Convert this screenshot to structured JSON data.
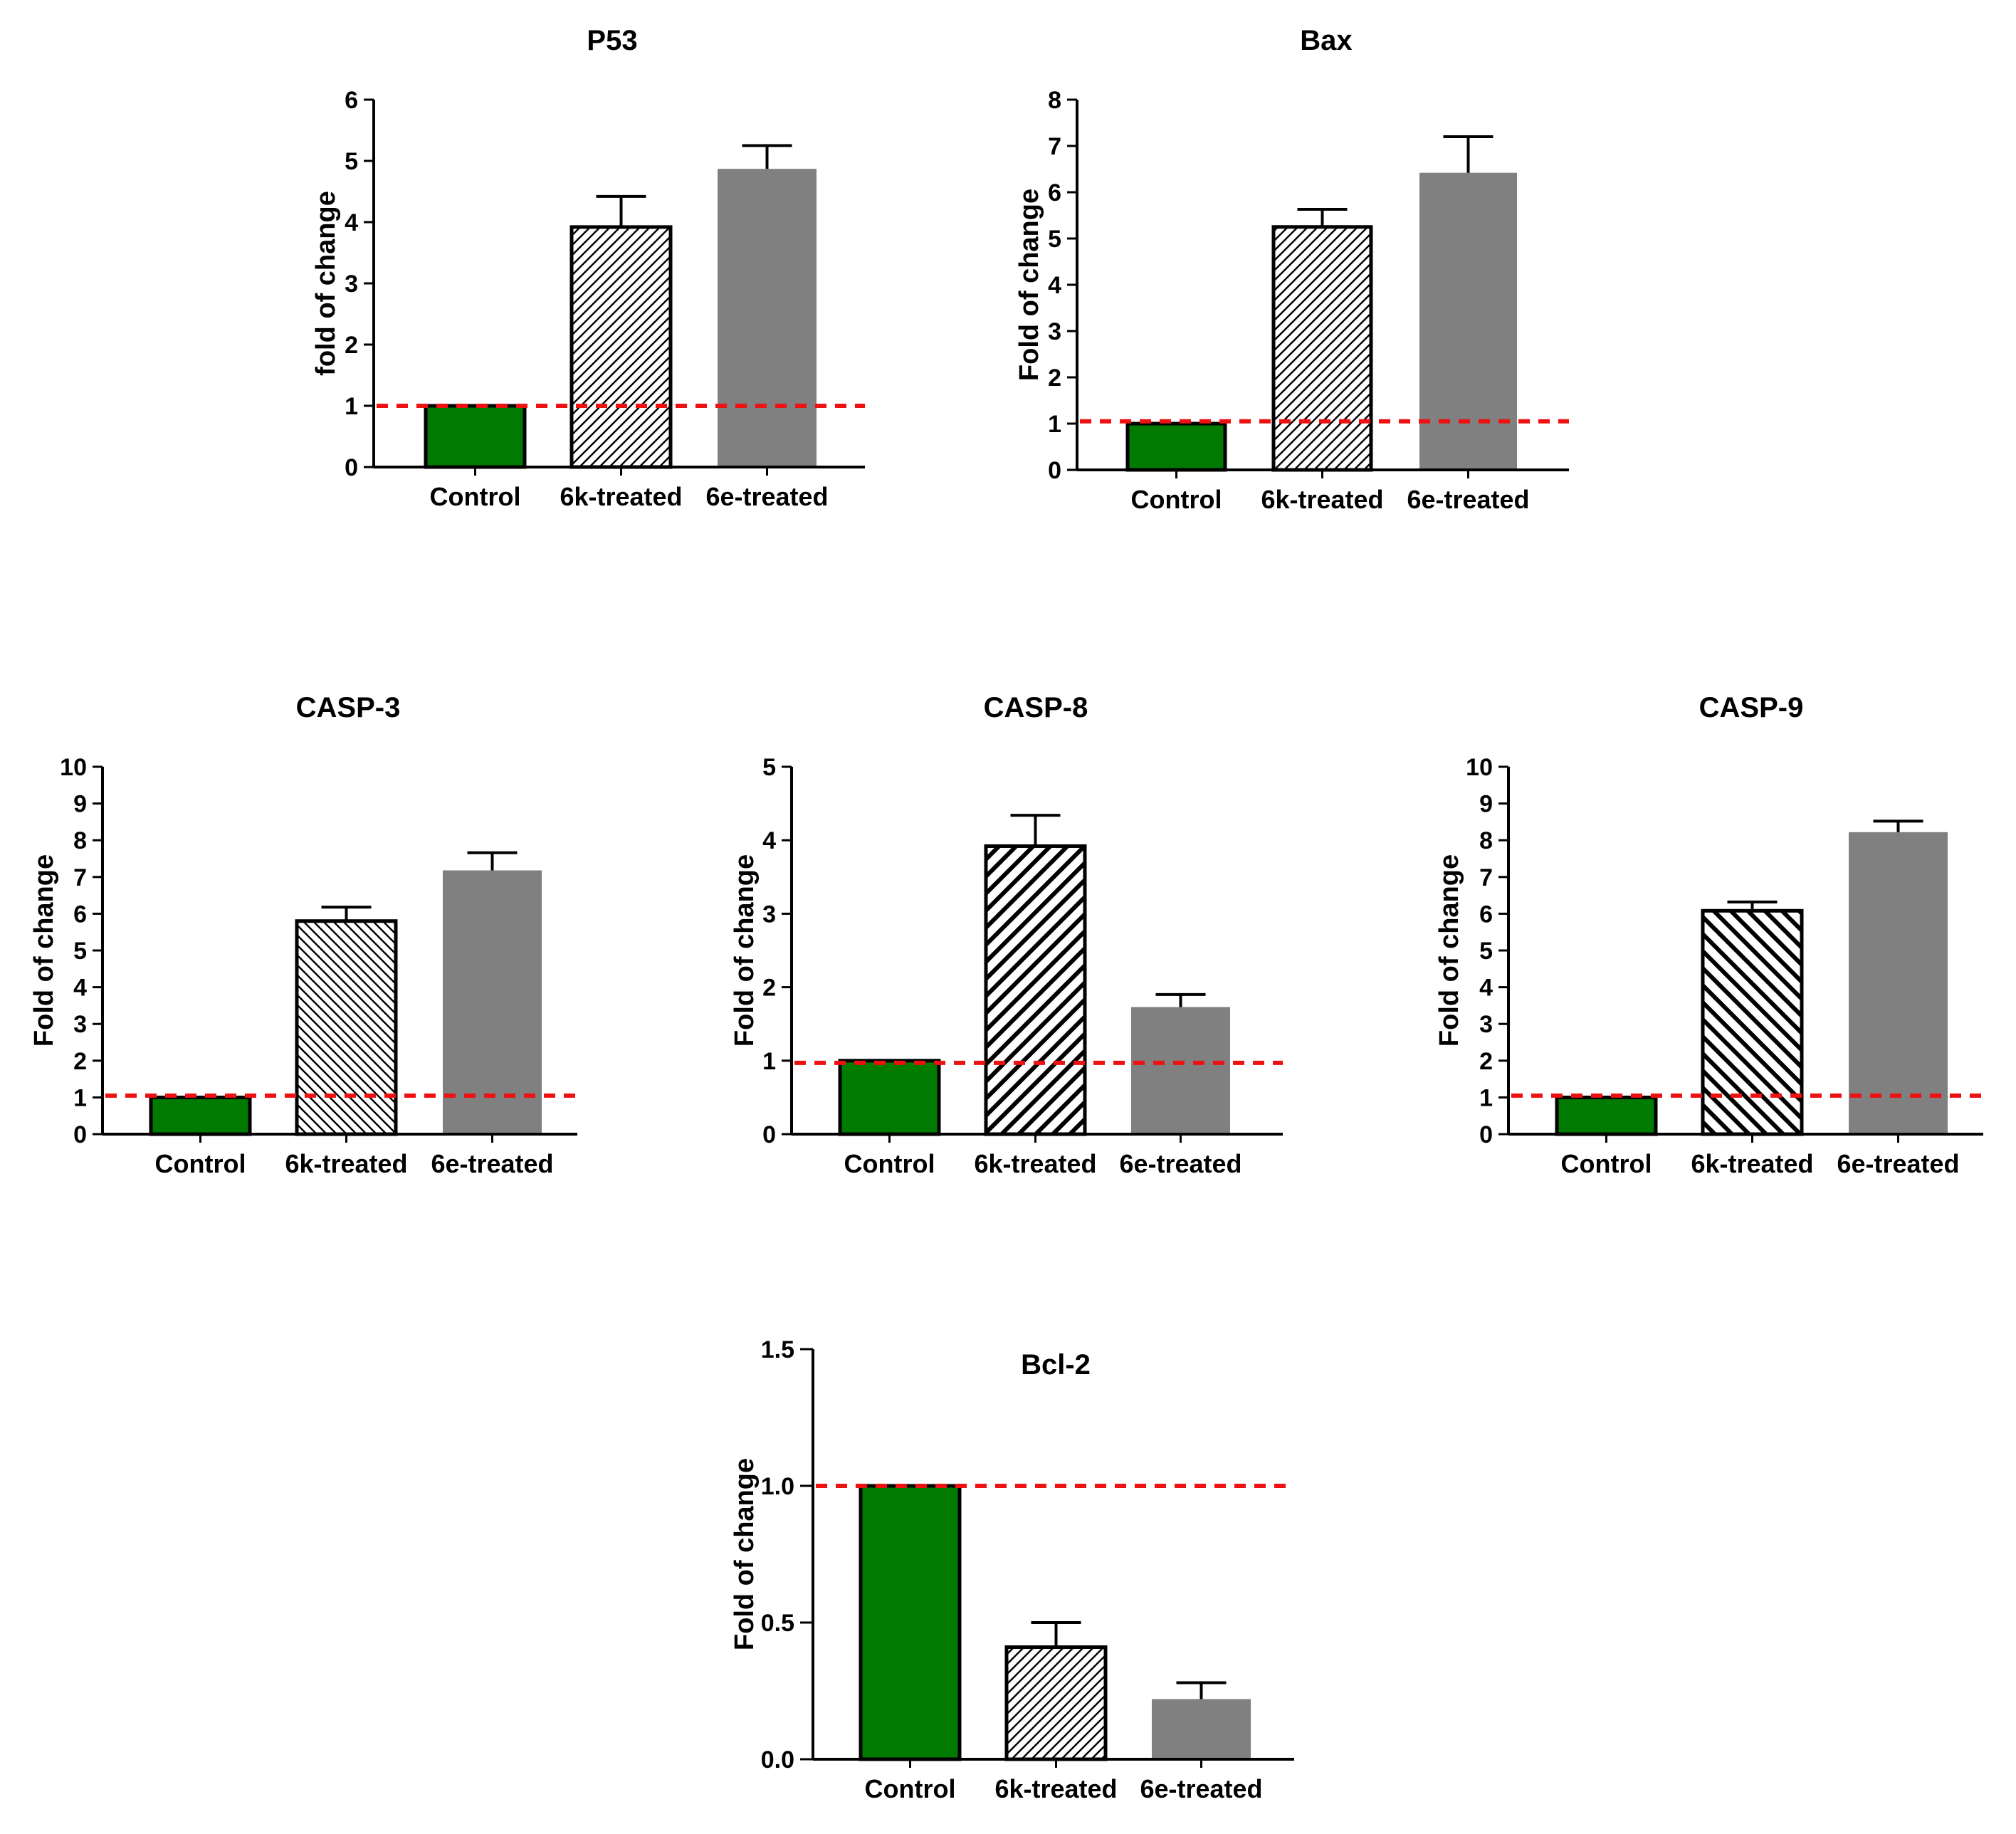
{
  "colors": {
    "control": "#007a00",
    "treated_e": "#808080",
    "reference_line": "#ee1111",
    "axis": "#000000"
  },
  "chart_data": [
    {
      "type": "bar",
      "title": "P53",
      "ylabel": "fold of change",
      "categories": [
        "Control",
        "6k-treated",
        "6e-treated"
      ],
      "values": [
        1.0,
        3.92,
        4.87
      ],
      "errors": [
        0.0,
        0.5,
        0.38
      ],
      "fills": [
        "solid-green",
        "hatch-fine",
        "solid-gray"
      ],
      "ylim": [
        0,
        6
      ],
      "yticks": [
        "0",
        "1",
        "2",
        "3",
        "4",
        "5",
        "6"
      ],
      "reference_line": 1.0
    },
    {
      "type": "bar",
      "title": "Bax",
      "ylabel": "Fold of change",
      "categories": [
        "Control",
        "6k-treated",
        "6e-treated"
      ],
      "values": [
        1.0,
        5.25,
        6.42
      ],
      "errors": [
        0.0,
        0.38,
        0.78
      ],
      "fills": [
        "solid-green",
        "hatch-fine",
        "solid-gray"
      ],
      "ylim": [
        0,
        8
      ],
      "yticks": [
        "0",
        "1",
        "2",
        "3",
        "4",
        "5",
        "6",
        "7",
        "8"
      ],
      "reference_line": 1.05
    },
    {
      "type": "bar",
      "title": "CASP-3",
      "ylabel": "Fold of change",
      "categories": [
        "Control",
        "6k-treated",
        "6e-treated"
      ],
      "values": [
        1.0,
        5.8,
        7.18
      ],
      "errors": [
        0.0,
        0.38,
        0.48
      ],
      "fills": [
        "solid-green",
        "hatch-back",
        "solid-gray"
      ],
      "ylim": [
        0,
        10
      ],
      "yticks": [
        "0",
        "1",
        "2",
        "3",
        "4",
        "5",
        "6",
        "7",
        "8",
        "9",
        "10"
      ],
      "reference_line": 1.05
    },
    {
      "type": "bar",
      "title": "CASP-8",
      "ylabel": "Fold of change",
      "categories": [
        "Control",
        "6k-treated",
        "6e-treated"
      ],
      "values": [
        1.0,
        3.92,
        1.73
      ],
      "errors": [
        0.0,
        0.42,
        0.17
      ],
      "fills": [
        "solid-green",
        "hatch-bold",
        "solid-gray"
      ],
      "ylim": [
        0,
        5
      ],
      "yticks": [
        "0",
        "1",
        "2",
        "3",
        "4",
        "5"
      ],
      "reference_line": 0.97
    },
    {
      "type": "bar",
      "title": "CASP-9",
      "ylabel": "Fold of change",
      "categories": [
        "Control",
        "6k-treated",
        "6e-treated"
      ],
      "values": [
        1.0,
        6.08,
        8.22
      ],
      "errors": [
        0.0,
        0.24,
        0.3
      ],
      "fills": [
        "solid-green",
        "hatch-bold-back",
        "solid-gray"
      ],
      "ylim": [
        0,
        10
      ],
      "yticks": [
        "0",
        "1",
        "2",
        "3",
        "4",
        "5",
        "6",
        "7",
        "8",
        "9",
        "10"
      ],
      "reference_line": 1.05
    },
    {
      "type": "bar",
      "title": "Bcl-2",
      "ylabel": "Fold of change",
      "categories": [
        "Control",
        "6k-treated",
        "6e-treated"
      ],
      "values": [
        1.0,
        0.41,
        0.22
      ],
      "errors": [
        0.0,
        0.09,
        0.06
      ],
      "fills": [
        "solid-green",
        "hatch-fine",
        "solid-gray"
      ],
      "ylim": [
        0,
        1.5
      ],
      "yticks": [
        "0.0",
        "0.5",
        "1.0",
        "1.5"
      ],
      "reference_line": 1.0
    }
  ]
}
